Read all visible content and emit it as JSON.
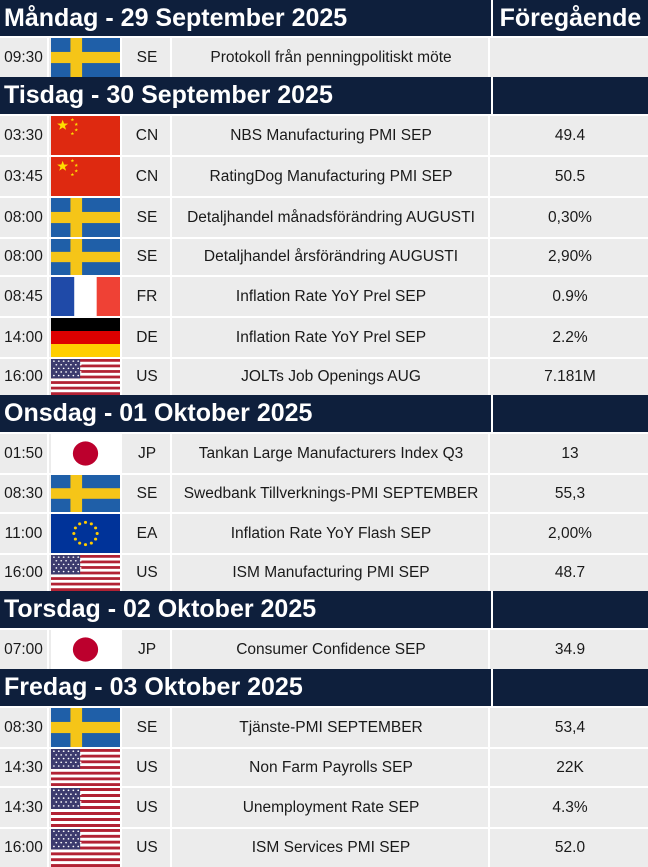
{
  "table": {
    "previous_header": "Föregående",
    "days": [
      {
        "label": "Måndag - 29 September 2025",
        "events": [
          {
            "time": "09:30",
            "flag": "sweden-flag-icon",
            "country": "SE",
            "event": "Protokoll från penningpolitiskt möte",
            "previous": ""
          }
        ]
      },
      {
        "label": "Tisdag - 30 September 2025",
        "events": [
          {
            "time": "03:30",
            "flag": "china-flag-icon",
            "country": "CN",
            "event": "NBS Manufacturing PMI SEP",
            "previous": "49.4"
          },
          {
            "time": "03:45",
            "flag": "china-flag-icon",
            "country": "CN",
            "event": "RatingDog Manufacturing PMI SEP",
            "previous": "50.5"
          },
          {
            "time": "08:00",
            "flag": "sweden-flag-icon",
            "country": "SE",
            "event": "Detaljhandel månadsförändring AUGUSTI",
            "previous": "0,30%"
          },
          {
            "time": "08:00",
            "flag": "sweden-flag-icon",
            "country": "SE",
            "event": "Detaljhandel årsförändring AUGUSTI",
            "previous": "2,90%"
          },
          {
            "time": "08:45",
            "flag": "france-flag-icon",
            "country": "FR",
            "event": "Inflation Rate YoY Prel SEP",
            "previous": "0.9%"
          },
          {
            "time": "14:00",
            "flag": "germany-flag-icon",
            "country": "DE",
            "event": "Inflation Rate YoY Prel SEP",
            "previous": "2.2%"
          },
          {
            "time": "16:00",
            "flag": "usa-flag-icon",
            "country": "US",
            "event": "JOLTs Job Openings AUG",
            "previous": "7.181M"
          }
        ]
      },
      {
        "label": "Onsdag - 01 Oktober 2025",
        "events": [
          {
            "time": "01:50",
            "flag": "japan-flag-icon",
            "country": "JP",
            "event": "Tankan Large Manufacturers Index Q3",
            "previous": "13"
          },
          {
            "time": "08:30",
            "flag": "sweden-flag-icon",
            "country": "SE",
            "event": "Swedbank Tillverknings-PMI SEPTEMBER",
            "previous": "55,3"
          },
          {
            "time": "11:00",
            "flag": "eu-flag-icon",
            "country": "EA",
            "event": "Inflation Rate YoY Flash SEP",
            "previous": "2,00%"
          },
          {
            "time": "16:00",
            "flag": "usa-flag-icon",
            "country": "US",
            "event": "ISM Manufacturing PMI SEP",
            "previous": "48.7"
          }
        ]
      },
      {
        "label": "Torsdag - 02 Oktober 2025",
        "events": [
          {
            "time": "07:00",
            "flag": "japan-flag-icon",
            "country": "JP",
            "event": "Consumer Confidence SEP",
            "previous": "34.9"
          }
        ]
      },
      {
        "label": "Fredag - 03 Oktober 2025",
        "events": [
          {
            "time": "08:30",
            "flag": "sweden-flag-icon",
            "country": "SE",
            "event": "Tjänste-PMI SEPTEMBER",
            "previous": "53,4"
          },
          {
            "time": "14:30",
            "flag": "usa-flag-icon",
            "country": "US",
            "event": "Non Farm Payrolls SEP",
            "previous": "22K"
          },
          {
            "time": "14:30",
            "flag": "usa-flag-icon",
            "country": "US",
            "event": "Unemployment Rate SEP",
            "previous": "4.3%"
          },
          {
            "time": "16:00",
            "flag": "usa-flag-icon",
            "country": "US",
            "event": "ISM Services PMI SEP",
            "previous": "52.0"
          }
        ]
      }
    ]
  },
  "colors": {
    "header_bg": "#0e1f3c",
    "header_text": "#ffffff",
    "row_bg": "#ececec",
    "sweden_blue": "#1f5fa8",
    "sweden_yellow": "#f5c518",
    "china_red": "#de2910",
    "china_star": "#ffde00",
    "france_blue": "#1f4aa8",
    "france_red": "#ef4135",
    "germany_black": "#000000",
    "germany_red": "#dd0000",
    "germany_gold": "#ffce00",
    "usa_red": "#b22234",
    "usa_blue": "#3c3b6e",
    "japan_red": "#bc002d",
    "eu_blue": "#003399",
    "eu_star": "#ffcc00"
  }
}
